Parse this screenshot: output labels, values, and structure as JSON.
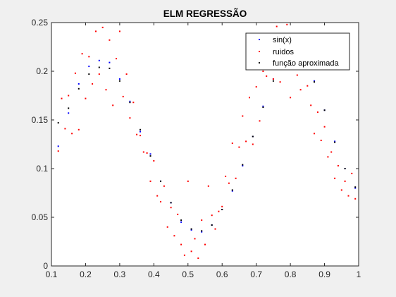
{
  "chart_data": {
    "type": "scatter",
    "title": "ELM REGRESSÃO",
    "xlabel": "",
    "ylabel": "",
    "xlim": [
      0.1,
      1
    ],
    "ylim": [
      0,
      0.25
    ],
    "xticks": [
      "0.1",
      "0.2",
      "0.3",
      "0.4",
      "0.5",
      "0.6",
      "0.7",
      "0.8",
      "0.9",
      "1"
    ],
    "yticks": [
      "0",
      "0.05",
      "0.1",
      "0.15",
      "0.2",
      "0.25"
    ],
    "grid": false,
    "legend_position": "top-right",
    "colors": {
      "sin": "#0000ff",
      "noise": "#ff0000",
      "approx": "#000000",
      "axes_bg": "#ffffff",
      "figure_bg": "#f0f0f0"
    },
    "series": [
      {
        "name": "sin(x)",
        "x": [
          0.12,
          0.15,
          0.18,
          0.21,
          0.24,
          0.27,
          0.3,
          0.33,
          0.36,
          0.39,
          0.42,
          0.45,
          0.48,
          0.51,
          0.54,
          0.57,
          0.6,
          0.63,
          0.66,
          0.69,
          0.72,
          0.75,
          0.78,
          0.81,
          0.84,
          0.87,
          0.9,
          0.93,
          0.96,
          0.99
        ],
        "y": [
          0.123,
          0.157,
          0.187,
          0.205,
          0.211,
          0.209,
          0.192,
          0.169,
          0.138,
          0.115,
          0.087,
          0.065,
          0.045,
          0.037,
          0.035,
          0.042,
          0.058,
          0.077,
          0.103,
          0.133,
          0.164,
          0.192,
          0.212,
          0.22,
          0.213,
          0.19,
          0.16,
          0.128,
          0.1,
          0.08
        ]
      },
      {
        "name": "ruidos",
        "x": [
          0.12,
          0.13,
          0.14,
          0.15,
          0.16,
          0.17,
          0.18,
          0.19,
          0.2,
          0.21,
          0.22,
          0.23,
          0.24,
          0.25,
          0.26,
          0.27,
          0.28,
          0.29,
          0.3,
          0.31,
          0.32,
          0.33,
          0.34,
          0.35,
          0.36,
          0.37,
          0.38,
          0.39,
          0.4,
          0.41,
          0.42,
          0.43,
          0.44,
          0.45,
          0.46,
          0.47,
          0.48,
          0.49,
          0.5,
          0.51,
          0.52,
          0.53,
          0.54,
          0.55,
          0.56,
          0.57,
          0.58,
          0.59,
          0.6,
          0.61,
          0.62,
          0.63,
          0.64,
          0.65,
          0.66,
          0.67,
          0.68,
          0.69,
          0.7,
          0.71,
          0.72,
          0.73,
          0.74,
          0.75,
          0.76,
          0.77,
          0.78,
          0.79,
          0.8,
          0.81,
          0.82,
          0.83,
          0.84,
          0.85,
          0.86,
          0.87,
          0.88,
          0.89,
          0.9,
          0.91,
          0.92,
          0.93,
          0.94,
          0.95,
          0.96,
          0.97,
          0.98,
          0.99
        ],
        "y": [
          0.118,
          0.172,
          0.141,
          0.175,
          0.136,
          0.198,
          0.14,
          0.218,
          0.172,
          0.215,
          0.187,
          0.241,
          0.197,
          0.245,
          0.181,
          0.232,
          0.165,
          0.213,
          0.241,
          0.174,
          0.197,
          0.152,
          0.168,
          0.135,
          0.134,
          0.117,
          0.116,
          0.087,
          0.108,
          0.072,
          0.066,
          0.082,
          0.04,
          0.06,
          0.031,
          0.053,
          0.022,
          0.011,
          0.087,
          0.015,
          0.028,
          0.008,
          0.047,
          0.022,
          0.082,
          0.052,
          0.038,
          0.056,
          0.061,
          0.092,
          0.085,
          0.126,
          0.09,
          0.122,
          0.154,
          0.128,
          0.173,
          0.125,
          0.184,
          0.149,
          0.2,
          0.195,
          0.218,
          0.192,
          0.246,
          0.189,
          0.204,
          0.248,
          0.173,
          0.23,
          0.196,
          0.181,
          0.203,
          0.185,
          0.165,
          0.136,
          0.158,
          0.129,
          0.143,
          0.112,
          0.117,
          0.09,
          0.103,
          0.078,
          0.087,
          0.072,
          0.095,
          0.069
        ]
      },
      {
        "name": "função aproximada",
        "x": [
          0.12,
          0.15,
          0.18,
          0.21,
          0.24,
          0.27,
          0.3,
          0.33,
          0.36,
          0.39,
          0.42,
          0.45,
          0.48,
          0.51,
          0.54,
          0.57,
          0.6,
          0.63,
          0.66,
          0.69,
          0.72,
          0.75,
          0.78,
          0.81,
          0.84,
          0.87,
          0.9,
          0.93,
          0.96,
          0.99
        ],
        "y": [
          0.147,
          0.162,
          0.182,
          0.197,
          0.204,
          0.203,
          0.19,
          0.168,
          0.14,
          0.113,
          0.087,
          0.065,
          0.047,
          0.038,
          0.036,
          0.042,
          0.058,
          0.078,
          0.104,
          0.133,
          0.163,
          0.19,
          0.208,
          0.216,
          0.21,
          0.189,
          0.16,
          0.127,
          0.1,
          0.081
        ]
      }
    ]
  }
}
